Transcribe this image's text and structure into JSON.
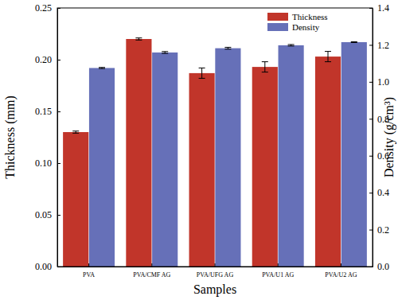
{
  "chart_data": {
    "type": "bar",
    "x_label": "Samples",
    "y_label": "Thickness (mm)",
    "y2_label": "Density (g/cm³)",
    "categories": [
      "PVA",
      "PVA/CMF AG",
      "PVA/UFG AG",
      "PVA/U1 AG",
      "PVA/U2 AG"
    ],
    "series": [
      {
        "name": "Thickness",
        "color": "#c1352a",
        "values": [
          0.13,
          0.22,
          0.187,
          0.193,
          0.203
        ],
        "errors": [
          0.001,
          0.001,
          0.005,
          0.005,
          0.005
        ]
      },
      {
        "name": "Density",
        "color": "#6670b8",
        "axis": "y2",
        "values": [
          1.075,
          1.159,
          1.182,
          1.198,
          1.215
        ],
        "errors": [
          0.003,
          0.005,
          0.005,
          0.004,
          0.002
        ]
      }
    ],
    "ylim": [
      0,
      0.25
    ],
    "yticks": [
      {
        "value": 0,
        "label": "0.00"
      },
      {
        "value": 0.05,
        "label": "0.05"
      },
      {
        "value": 0.1,
        "label": "0.10"
      },
      {
        "value": 0.15,
        "label": "0.15"
      },
      {
        "value": 0.2,
        "label": "0.20"
      },
      {
        "value": 0.25,
        "label": "0.25"
      }
    ],
    "y2lim": [
      0,
      1.4
    ],
    "y2ticks": [
      {
        "value": 0,
        "label": "0.0"
      },
      {
        "value": 0.2,
        "label": "0.2"
      },
      {
        "value": 0.4,
        "label": "0.4"
      },
      {
        "value": 0.6,
        "label": "0.6"
      },
      {
        "value": 0.8,
        "label": "0.8"
      },
      {
        "value": 1,
        "label": "1.0"
      },
      {
        "value": 1.2,
        "label": "1.2"
      },
      {
        "value": 1.4,
        "label": "1.4"
      }
    ],
    "legend": "upper right"
  }
}
